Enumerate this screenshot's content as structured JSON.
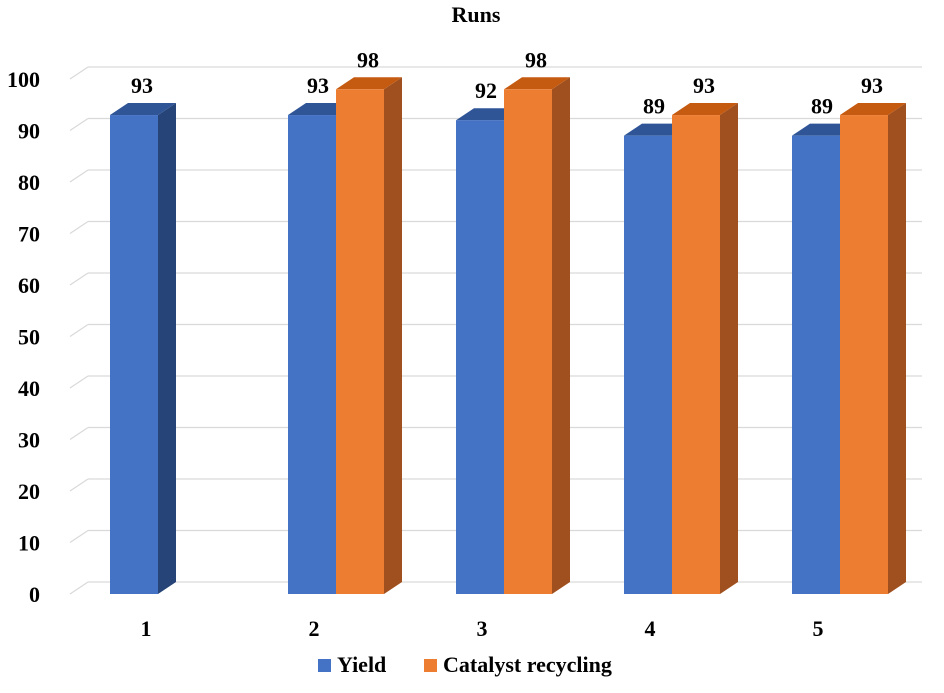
{
  "colors": {
    "yield_front": "#4472C4",
    "yield_top": "#2F5597",
    "yield_side": "#264478",
    "recycle_front": "#ED7D31",
    "recycle_top": "#C55A11",
    "recycle_side": "#A0501F",
    "grid": "#D9D9D9"
  },
  "chart_data": {
    "type": "bar",
    "title": "Runs",
    "xlabel": "",
    "ylabel": "",
    "ylim": [
      0,
      100
    ],
    "yticks": [
      0,
      10,
      20,
      30,
      40,
      50,
      60,
      70,
      80,
      90,
      100
    ],
    "categories": [
      "1",
      "2",
      "3",
      "4",
      "5"
    ],
    "series": [
      {
        "name": "Yield",
        "values": [
          93,
          93,
          92,
          89,
          89
        ]
      },
      {
        "name": "Catalyst recycling",
        "values": [
          null,
          98,
          98,
          93,
          93
        ]
      }
    ],
    "legend_position": "bottom",
    "grid": true,
    "style": "3d-column"
  }
}
